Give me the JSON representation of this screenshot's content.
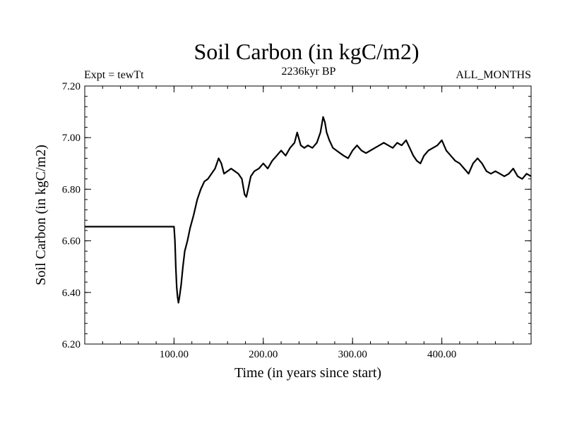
{
  "chart_data": {
    "type": "line",
    "title": "Soil Carbon (in kgC/m2)",
    "subtitle_left": "Expt = tewTt",
    "subtitle_center": "2236kyr BP",
    "subtitle_right": "ALL_MONTHS",
    "xlabel": "Time (in years since start)",
    "ylabel": "Soil Carbon (in kgC/m2)",
    "xlim": [
      0,
      500
    ],
    "ylim": [
      6.2,
      7.2
    ],
    "x_ticks": [
      100,
      200,
      300,
      400
    ],
    "x_tick_labels": [
      "100.00",
      "200.00",
      "300.00",
      "400.00"
    ],
    "y_ticks": [
      6.2,
      6.4,
      6.6,
      6.8,
      7.0,
      7.2
    ],
    "y_tick_labels": [
      "6.20",
      "6.40",
      "6.60",
      "6.80",
      "7.00",
      "7.20"
    ],
    "series": [
      {
        "name": "Soil Carbon",
        "color": "#000000",
        "x": [
          0,
          99,
          100,
          101,
          102,
          103,
          104,
          105,
          106,
          108,
          110,
          112,
          115,
          118,
          122,
          126,
          130,
          134,
          138,
          142,
          146,
          150,
          153,
          156,
          160,
          164,
          168,
          172,
          176,
          179,
          181,
          183,
          186,
          190,
          195,
          200,
          205,
          210,
          215,
          220,
          225,
          230,
          235,
          238,
          242,
          246,
          250,
          255,
          260,
          264,
          267,
          269,
          271,
          274,
          278,
          282,
          286,
          290,
          295,
          300,
          305,
          310,
          315,
          320,
          325,
          330,
          335,
          340,
          345,
          350,
          355,
          360,
          364,
          368,
          372,
          376,
          380,
          385,
          390,
          395,
          400,
          405,
          410,
          415,
          420,
          425,
          430,
          435,
          440,
          445,
          450,
          455,
          460,
          465,
          470,
          475,
          480,
          485,
          490,
          495,
          500
        ],
        "values": [
          6.655,
          6.655,
          6.655,
          6.6,
          6.5,
          6.42,
          6.38,
          6.36,
          6.38,
          6.43,
          6.5,
          6.56,
          6.6,
          6.65,
          6.7,
          6.76,
          6.8,
          6.83,
          6.84,
          6.86,
          6.88,
          6.92,
          6.9,
          6.86,
          6.87,
          6.88,
          6.87,
          6.86,
          6.84,
          6.78,
          6.77,
          6.8,
          6.85,
          6.87,
          6.88,
          6.9,
          6.88,
          6.91,
          6.93,
          6.95,
          6.93,
          6.96,
          6.98,
          7.02,
          6.97,
          6.96,
          6.97,
          6.96,
          6.98,
          7.02,
          7.08,
          7.06,
          7.02,
          6.99,
          6.96,
          6.95,
          6.94,
          6.93,
          6.92,
          6.95,
          6.97,
          6.95,
          6.94,
          6.95,
          6.96,
          6.97,
          6.98,
          6.97,
          6.96,
          6.98,
          6.97,
          6.99,
          6.96,
          6.93,
          6.91,
          6.9,
          6.93,
          6.95,
          6.96,
          6.97,
          6.99,
          6.95,
          6.93,
          6.91,
          6.9,
          6.88,
          6.86,
          6.9,
          6.92,
          6.9,
          6.87,
          6.86,
          6.87,
          6.86,
          6.85,
          6.86,
          6.88,
          6.85,
          6.84,
          6.86,
          6.85
        ]
      }
    ]
  }
}
